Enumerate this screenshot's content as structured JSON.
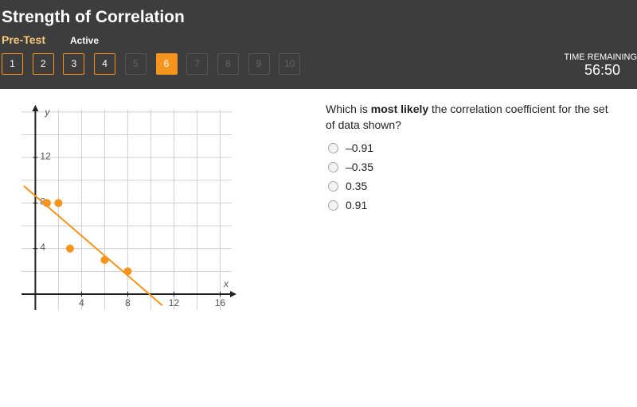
{
  "header": {
    "title": "Strength of Correlation",
    "subtitle": "Pre-Test",
    "status": "Active",
    "questions": [
      {
        "label": "1",
        "state": "answered"
      },
      {
        "label": "2",
        "state": "answered"
      },
      {
        "label": "3",
        "state": "answered"
      },
      {
        "label": "4",
        "state": "answered"
      },
      {
        "label": "5",
        "state": "locked"
      },
      {
        "label": "6",
        "state": "current"
      },
      {
        "label": "7",
        "state": "locked"
      },
      {
        "label": "8",
        "state": "locked"
      },
      {
        "label": "9",
        "state": "locked"
      },
      {
        "label": "10",
        "state": "locked"
      }
    ]
  },
  "timer": {
    "label": "TIME REMAINING",
    "value": "56:50"
  },
  "question": {
    "text": [
      "Which is ",
      "most likely",
      " the correlation coefficient for the set of data shown?"
    ],
    "options": [
      "–0.91",
      "–0.35",
      "0.35",
      "0.91"
    ]
  },
  "graph": {
    "type": "scatter",
    "xlabel": "x",
    "ylabel": "y",
    "x": [
      1,
      2,
      3,
      6,
      8
    ],
    "y": [
      8,
      8,
      4,
      3,
      2
    ],
    "color": "#f7941d",
    "trend": {
      "x": [
        -1,
        11
      ],
      "y": [
        9.5,
        -1
      ]
    },
    "xlim": [
      -1.2,
      17
    ],
    "ylim": [
      -1.4,
      16.2
    ],
    "xticks": [
      4,
      8,
      12,
      16
    ],
    "yticks": [
      4,
      8,
      12
    ],
    "grid_step": 2
  }
}
